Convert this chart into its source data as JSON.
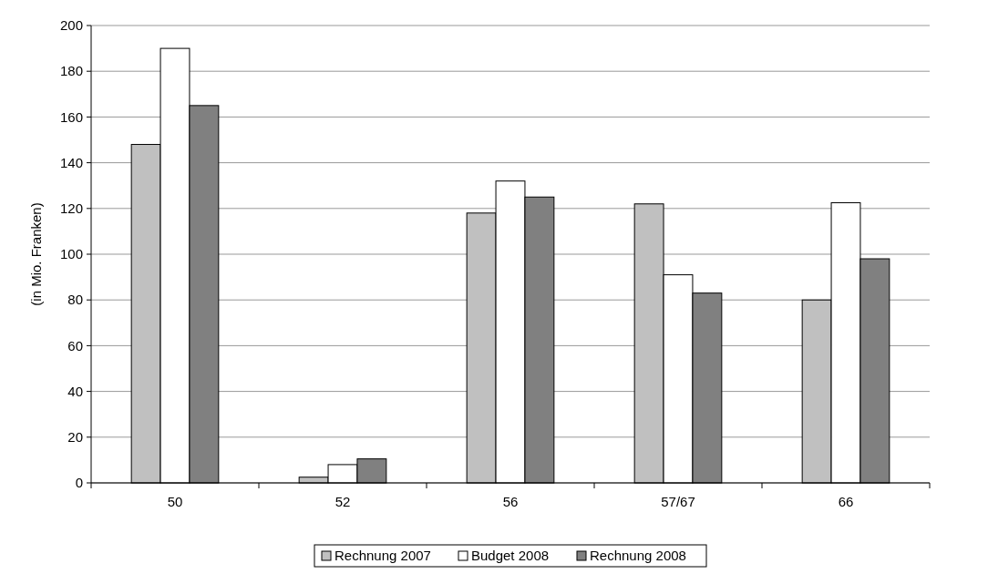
{
  "chart_data": {
    "type": "bar",
    "ylabel": "(in Mio. Franken)",
    "categories": [
      "50",
      "52",
      "56",
      "57/67",
      "66"
    ],
    "series": [
      {
        "name": "Rechnung 2007",
        "color": "#c0c0c0",
        "values": [
          148,
          2.5,
          118,
          122,
          80
        ]
      },
      {
        "name": "Budget 2008",
        "color": "#ffffff",
        "values": [
          190,
          8,
          132,
          91,
          122.5
        ]
      },
      {
        "name": "Rechnung 2008",
        "color": "#808080",
        "values": [
          165,
          10.5,
          125,
          83,
          98
        ]
      }
    ],
    "ylim": [
      0,
      200
    ],
    "yticks": [
      0,
      20,
      40,
      60,
      80,
      100,
      120,
      140,
      160,
      180,
      200
    ],
    "grid": "y",
    "legend": "bottom"
  }
}
